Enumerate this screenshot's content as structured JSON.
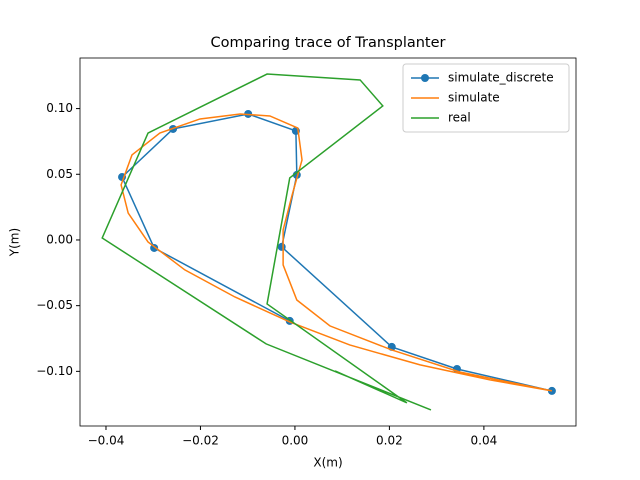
{
  "chart_data": {
    "type": "line",
    "title": "Comparing trace of Transplanter",
    "x_label": "X(m)",
    "y_label": "Y(m)",
    "xlim": [
      -0.0455,
      0.0595
    ],
    "ylim": [
      -0.1416,
      0.1385
    ],
    "xticks": [
      {
        "value": -0.04,
        "label": "−0.04"
      },
      {
        "value": -0.02,
        "label": "−0.02"
      },
      {
        "value": 0,
        "label": "0.00"
      },
      {
        "value": 0.02,
        "label": "0.02"
      },
      {
        "value": 0.04,
        "label": "0.04"
      }
    ],
    "yticks": [
      {
        "value": -0.1,
        "label": "−0.10"
      },
      {
        "value": -0.05,
        "label": "−0.05"
      },
      {
        "value": 0,
        "label": "0.00"
      },
      {
        "value": 0.05,
        "label": "0.05"
      },
      {
        "value": 0.1,
        "label": "0.10"
      }
    ],
    "grid": false,
    "legend": "upper right",
    "series": [
      {
        "name": "simulate_discrete",
        "color": "#1f77b4",
        "marker": true,
        "x": [
          -0.0011,
          -0.0298,
          -0.0366,
          -0.0258,
          -0.0099,
          0.0002,
          0.0004,
          -0.0028,
          0.0205,
          0.0343,
          0.0544
        ],
        "y": [
          -0.0616,
          -0.0061,
          0.0479,
          0.0845,
          0.0959,
          0.083,
          0.0495,
          -0.0053,
          -0.0814,
          -0.0982,
          -0.1149
        ]
      },
      {
        "name": "simulate",
        "color": "#ff7f0e",
        "marker": false,
        "x": [
          0.0544,
          0.0349,
          0.0205,
          0.0074,
          0.0004,
          -0.0025,
          -0.0025,
          -0.0006,
          0.0015,
          0.0006,
          -0.0053,
          -0.0116,
          -0.0201,
          -0.0286,
          -0.0345,
          -0.0368,
          -0.0353,
          -0.0311,
          -0.0233,
          -0.0127,
          -0.0011,
          0.0116,
          0.0265,
          0.0413,
          0.0544
        ],
        "y": [
          -0.1149,
          -0.1005,
          -0.0837,
          -0.0654,
          -0.0457,
          -0.019,
          0.0076,
          0.0342,
          0.0609,
          0.0852,
          0.0944,
          0.0959,
          0.0921,
          0.0814,
          0.0647,
          0.0419,
          0.0205,
          -0.0015,
          -0.0228,
          -0.0434,
          -0.0624,
          -0.0799,
          -0.0951,
          -0.1065,
          -0.1149
        ]
      },
      {
        "name": "real",
        "color": "#2ca02c",
        "marker": false,
        "x": [
          0.0288,
          -0.0061,
          -0.0408,
          -0.0311,
          -0.0059,
          0.0138,
          0.0186,
          -0.0011,
          -0.0059,
          0.0237,
          0.0085
        ],
        "y": [
          -0.1294,
          -0.0791,
          0.0015,
          0.0814,
          0.1263,
          0.1218,
          0.102,
          0.0472,
          -0.0487,
          -0.124,
          -0.0997
        ]
      }
    ]
  }
}
